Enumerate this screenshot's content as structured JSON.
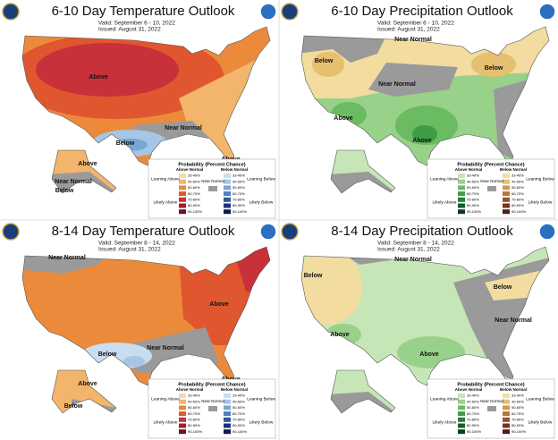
{
  "panels": [
    {
      "title": "6-10 Day Temperature Outlook",
      "valid": "Valid: September 6 - 10, 2022",
      "issued": "Issued: August 31, 2022",
      "labels": [
        "Above",
        "Near Normal",
        "Below",
        "Above",
        "Above",
        "Near Normal",
        "Below"
      ]
    },
    {
      "title": "6-10 Day Precipitation Outlook",
      "valid": "Valid: September 6 - 10, 2022",
      "issued": "Issued: August 31, 2022",
      "labels": [
        "Near Normal",
        "Below",
        "Near Normal",
        "Below",
        "Above",
        "Above"
      ]
    },
    {
      "title": "8-14 Day Temperature Outlook",
      "valid": "Valid: September 8 - 14, 2022",
      "issued": "Issued: August 31, 2022",
      "labels": [
        "Near Normal",
        "Above",
        "Near Normal",
        "Below",
        "Above",
        "Above",
        "Below"
      ]
    },
    {
      "title": "8-14 Day Precipitation Outlook",
      "valid": "Valid: September 8 - 14, 2022",
      "issued": "Issued: August 31, 2022",
      "labels": [
        "Below",
        "Near Normal",
        "Below",
        "Near Normal",
        "Above",
        "Above"
      ]
    }
  ],
  "legend": {
    "title": "Probability (Percent Chance)",
    "above_header": "Above Normal",
    "below_header": "Below Normal",
    "near_normal": "Near Normal",
    "leaning_above": "Leaning Above",
    "likely_above": "Likely Above",
    "leaning_below": "Leaning Below",
    "likely_below": "Likely Below",
    "ranges": [
      "33-40%",
      "40-50%",
      "50-60%",
      "60-70%",
      "70-80%",
      "80-90%",
      "90-100%"
    ]
  }
}
